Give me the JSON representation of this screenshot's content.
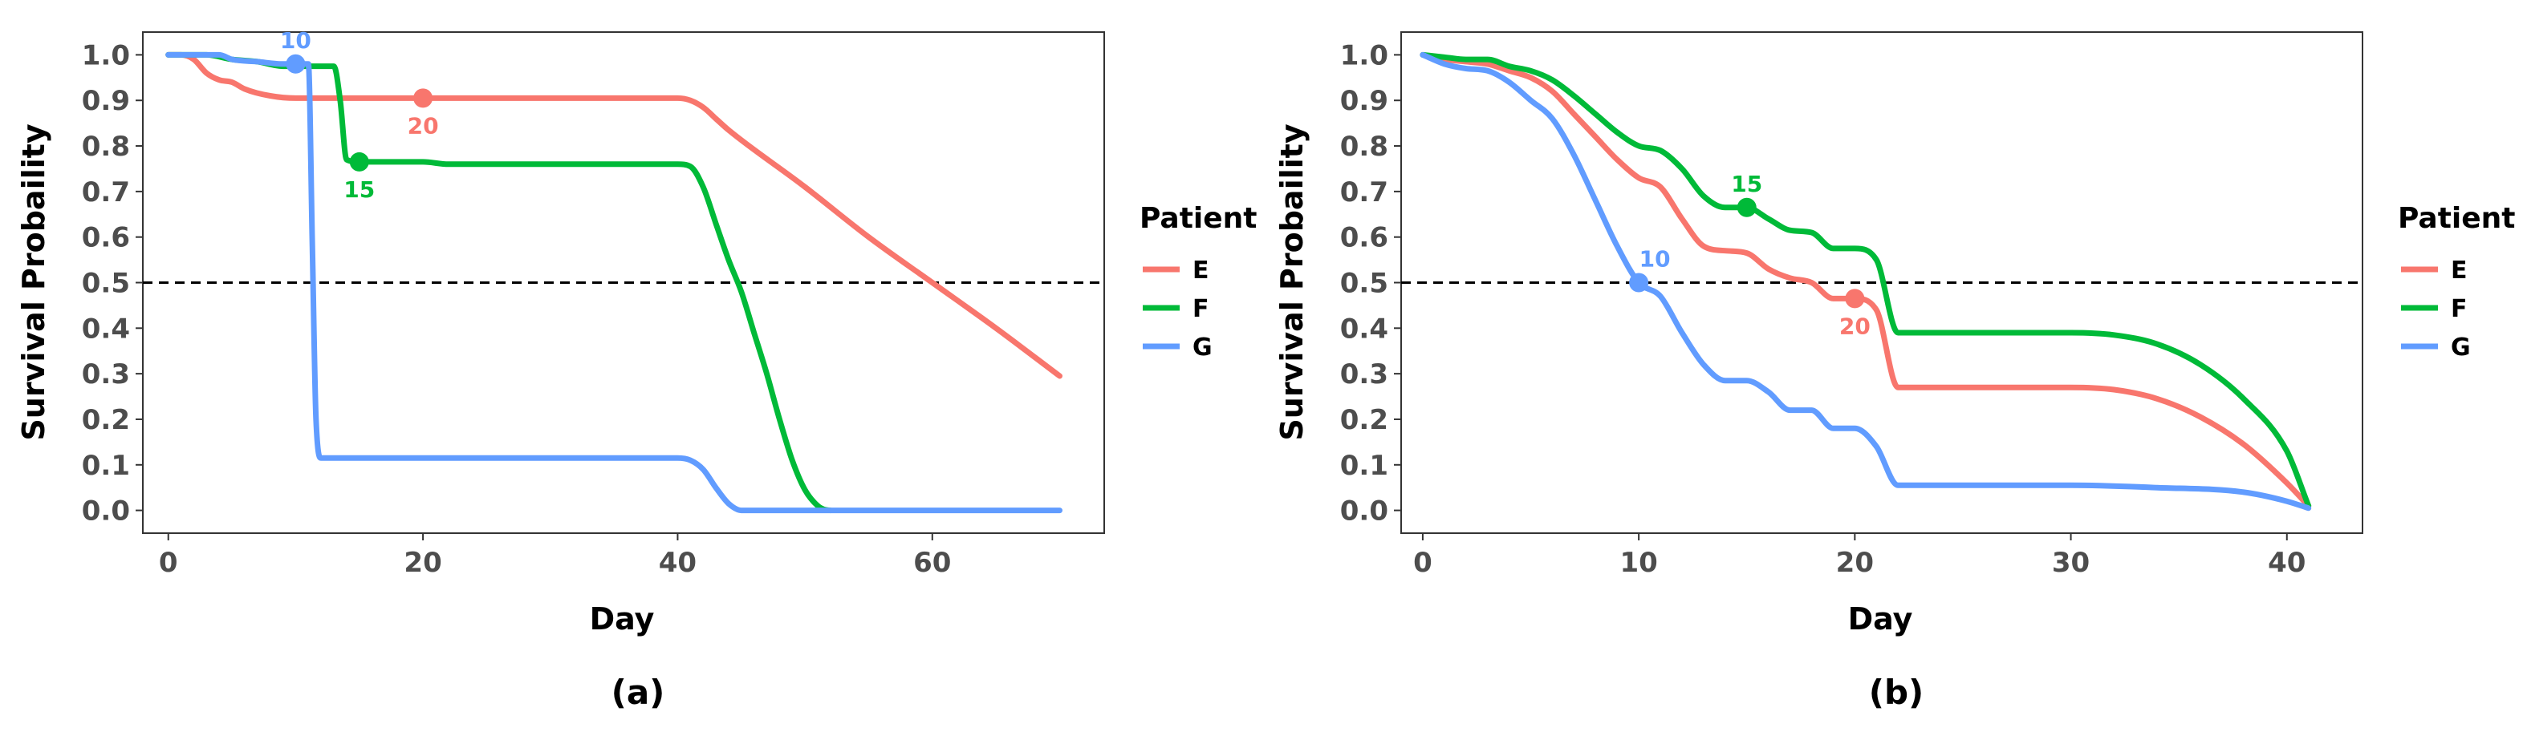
{
  "chart_data": [
    {
      "type": "line",
      "caption": "(a)",
      "xlabel": "Day",
      "ylabel": "Survival Probaility",
      "xlim": [
        -2,
        73.5
      ],
      "ylim": [
        -0.05,
        1.05
      ],
      "xticks": [
        0,
        20,
        40,
        60
      ],
      "yticks": [
        0.0,
        0.1,
        0.2,
        0.3,
        0.4,
        0.5,
        0.6,
        0.7,
        0.8,
        0.9,
        1.0
      ],
      "grid": false,
      "reference_line": {
        "y": 0.5,
        "style": "dashed"
      },
      "legend": {
        "title": "Patient",
        "placement": "right"
      },
      "series": [
        {
          "name": "E",
          "color": "#F8766D",
          "x": [
            0,
            1,
            2,
            3,
            4,
            5,
            6,
            8,
            10,
            15,
            20,
            30,
            40,
            41,
            42,
            43,
            44,
            50,
            55,
            60,
            65,
            70
          ],
          "y": [
            1.0,
            1.0,
            0.99,
            0.96,
            0.945,
            0.94,
            0.925,
            0.91,
            0.905,
            0.905,
            0.905,
            0.905,
            0.905,
            0.9,
            0.885,
            0.86,
            0.835,
            0.71,
            0.6,
            0.5,
            0.4,
            0.295
          ]
        },
        {
          "name": "F",
          "color": "#00BA38",
          "x": [
            0,
            3,
            5,
            7,
            9,
            10,
            12,
            13,
            13.5,
            14,
            15,
            20,
            22,
            30,
            40,
            41,
            42,
            43,
            44,
            45,
            46,
            47,
            48,
            49,
            50,
            51,
            51.5,
            52
          ],
          "y": [
            1.0,
            1.0,
            0.99,
            0.985,
            0.975,
            0.975,
            0.975,
            0.975,
            0.9,
            0.77,
            0.765,
            0.765,
            0.76,
            0.76,
            0.76,
            0.755,
            0.71,
            0.63,
            0.55,
            0.48,
            0.39,
            0.3,
            0.2,
            0.11,
            0.045,
            0.01,
            0.002,
            0.0
          ]
        },
        {
          "name": "G",
          "color": "#619CFF",
          "x": [
            0,
            4,
            5,
            7,
            9,
            10,
            11,
            11.3,
            11.6,
            12,
            20,
            30,
            40,
            41,
            42,
            43,
            44,
            45,
            50,
            60,
            70
          ],
          "y": [
            1.0,
            1.0,
            0.99,
            0.985,
            0.98,
            0.98,
            0.98,
            0.6,
            0.2,
            0.115,
            0.115,
            0.115,
            0.115,
            0.11,
            0.09,
            0.05,
            0.015,
            0.0,
            0.0,
            0.0,
            0.0
          ]
        }
      ],
      "annotations": [
        {
          "series": "G",
          "x": 10,
          "y": 0.98,
          "text": "10",
          "position": "above"
        },
        {
          "series": "F",
          "x": 15,
          "y": 0.765,
          "text": "15",
          "position": "below"
        },
        {
          "series": "E",
          "x": 20,
          "y": 0.905,
          "text": "20",
          "position": "below"
        }
      ]
    },
    {
      "type": "line",
      "caption": "(b)",
      "xlabel": "Day",
      "ylabel": "Survival Probaility",
      "xlim": [
        -1,
        43.5
      ],
      "ylim": [
        -0.05,
        1.05
      ],
      "xticks": [
        0,
        10,
        20,
        30,
        40
      ],
      "yticks": [
        0.0,
        0.1,
        0.2,
        0.3,
        0.4,
        0.5,
        0.6,
        0.7,
        0.8,
        0.9,
        1.0
      ],
      "grid": false,
      "reference_line": {
        "y": 0.5,
        "style": "dashed"
      },
      "legend": {
        "title": "Patient",
        "placement": "right"
      },
      "series": [
        {
          "name": "E",
          "color": "#F8766D",
          "x": [
            0,
            1,
            2,
            3,
            4,
            5,
            6,
            7,
            8,
            9,
            10,
            11,
            12,
            13,
            14,
            15,
            16,
            17,
            18,
            19,
            20,
            21,
            22,
            25,
            30,
            32,
            34,
            36,
            38,
            40,
            41
          ],
          "y": [
            1.0,
            0.99,
            0.985,
            0.98,
            0.965,
            0.95,
            0.92,
            0.87,
            0.82,
            0.77,
            0.73,
            0.71,
            0.64,
            0.58,
            0.57,
            0.565,
            0.53,
            0.51,
            0.5,
            0.465,
            0.465,
            0.44,
            0.27,
            0.27,
            0.27,
            0.265,
            0.245,
            0.205,
            0.145,
            0.06,
            0.01
          ]
        },
        {
          "name": "F",
          "color": "#00BA38",
          "x": [
            0,
            1,
            2,
            3,
            4,
            5,
            6,
            7,
            8,
            9,
            10,
            11,
            12,
            13,
            14,
            15,
            16,
            17,
            18,
            19,
            20,
            21,
            22,
            25,
            30,
            32,
            34,
            36,
            38,
            40,
            41
          ],
          "y": [
            1.0,
            0.995,
            0.99,
            0.99,
            0.975,
            0.965,
            0.945,
            0.91,
            0.87,
            0.83,
            0.8,
            0.79,
            0.75,
            0.69,
            0.665,
            0.665,
            0.64,
            0.615,
            0.61,
            0.575,
            0.575,
            0.55,
            0.39,
            0.39,
            0.39,
            0.385,
            0.365,
            0.32,
            0.245,
            0.13,
            0.01
          ]
        },
        {
          "name": "G",
          "color": "#619CFF",
          "x": [
            0,
            1,
            2,
            3,
            4,
            5,
            6,
            7,
            8,
            9,
            10,
            11,
            12,
            13,
            14,
            15,
            16,
            17,
            18,
            19,
            20,
            21,
            22,
            25,
            30,
            34,
            38,
            40,
            41
          ],
          "y": [
            1.0,
            0.98,
            0.97,
            0.965,
            0.94,
            0.9,
            0.86,
            0.78,
            0.68,
            0.58,
            0.5,
            0.47,
            0.39,
            0.32,
            0.285,
            0.285,
            0.26,
            0.22,
            0.22,
            0.18,
            0.18,
            0.14,
            0.055,
            0.055,
            0.055,
            0.05,
            0.04,
            0.02,
            0.005
          ]
        }
      ],
      "annotations": [
        {
          "series": "G",
          "x": 10,
          "y": 0.5,
          "text": "10",
          "position": "above-right"
        },
        {
          "series": "F",
          "x": 15,
          "y": 0.665,
          "text": "15",
          "position": "above"
        },
        {
          "series": "E",
          "x": 20,
          "y": 0.465,
          "text": "20",
          "position": "below"
        }
      ]
    }
  ]
}
